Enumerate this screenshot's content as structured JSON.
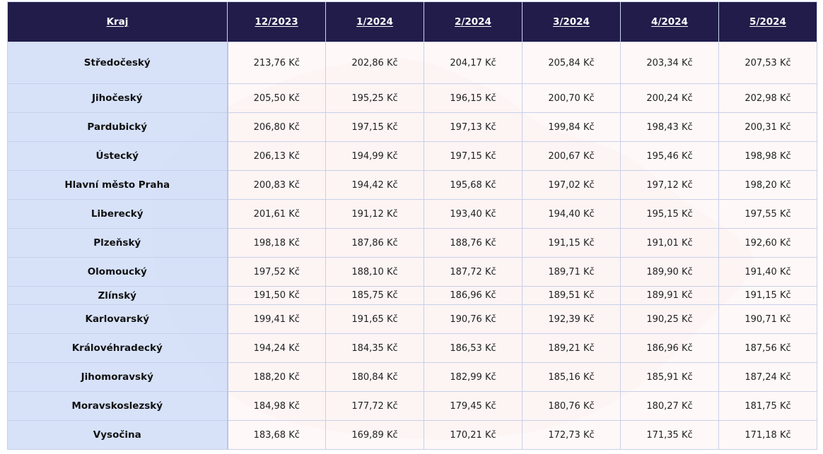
{
  "table": {
    "headers": [
      "Kraj",
      "12/2023",
      "1/2024",
      "2/2024",
      "3/2024",
      "4/2024",
      "5/2024"
    ],
    "rows": [
      {
        "kraj": "Středočeský",
        "values": [
          "213,76 Kč",
          "202,86 Kč",
          "204,17 Kč",
          "205,84 Kč",
          "203,34 Kč",
          "207,53 Kč"
        ]
      },
      {
        "kraj": "Jihočeský",
        "values": [
          "205,50 Kč",
          "195,25 Kč",
          "196,15 Kč",
          "200,70 Kč",
          "200,24 Kč",
          "202,98 Kč"
        ]
      },
      {
        "kraj": "Pardubický",
        "values": [
          "206,80 Kč",
          "197,15 Kč",
          "197,13 Kč",
          "199,84 Kč",
          "198,43 Kč",
          "200,31 Kč"
        ]
      },
      {
        "kraj": "Ústecký",
        "values": [
          "206,13 Kč",
          "194,99 Kč",
          "197,15 Kč",
          "200,67 Kč",
          "195,46 Kč",
          "198,98 Kč"
        ]
      },
      {
        "kraj": "Hlavní město Praha",
        "values": [
          "200,83 Kč",
          "194,42 Kč",
          "195,68 Kč",
          "197,02 Kč",
          "197,12 Kč",
          "198,20 Kč"
        ]
      },
      {
        "kraj": "Liberecký",
        "values": [
          "201,61 Kč",
          "191,12 Kč",
          "193,40 Kč",
          "194,40 Kč",
          "195,15 Kč",
          "197,55 Kč"
        ]
      },
      {
        "kraj": "Plzeňský",
        "values": [
          "198,18 Kč",
          "187,86 Kč",
          "188,76 Kč",
          "191,15 Kč",
          "191,01 Kč",
          "192,60 Kč"
        ]
      },
      {
        "kraj": "Olomoucký",
        "values": [
          "197,52 Kč",
          "188,10 Kč",
          "187,72 Kč",
          "189,71 Kč",
          "189,90 Kč",
          "191,40 Kč"
        ]
      },
      {
        "kraj": "Zlínský",
        "values": [
          "191,50 Kč",
          "185,75 Kč",
          "186,96 Kč",
          "189,51 Kč",
          "189,91 Kč",
          "191,15 Kč"
        ]
      },
      {
        "kraj": "Karlovarský",
        "values": [
          "199,41 Kč",
          "191,65 Kč",
          "190,76 Kč",
          "192,39 Kč",
          "190,25 Kč",
          "190,71 Kč"
        ]
      },
      {
        "kraj": "Královéhradecký",
        "values": [
          "194,24 Kč",
          "184,35 Kč",
          "186,53 Kč",
          "189,21 Kč",
          "186,96 Kč",
          "187,56 Kč"
        ]
      },
      {
        "kraj": "Jihomoravský",
        "values": [
          "188,20 Kč",
          "180,84 Kč",
          "182,99 Kč",
          "185,16 Kč",
          "185,91 Kč",
          "187,24 Kč"
        ]
      },
      {
        "kraj": "Moravskoslezský",
        "values": [
          "184,98 Kč",
          "177,72 Kč",
          "179,45 Kč",
          "180,76 Kč",
          "180,27 Kč",
          "181,75 Kč"
        ]
      },
      {
        "kraj": "Vysočina",
        "values": [
          "183,68 Kč",
          "169,89 Kč",
          "170,21 Kč",
          "172,73 Kč",
          "171,35 Kč",
          "171,18 Kč"
        ]
      }
    ]
  },
  "colors": {
    "header_bg": "#221c4a",
    "header_text": "#ffffff",
    "kraj_cell_bg": "#d4e0f8",
    "value_cell_bg": "#fff6f6",
    "map_watermark": "#ead8d8"
  }
}
